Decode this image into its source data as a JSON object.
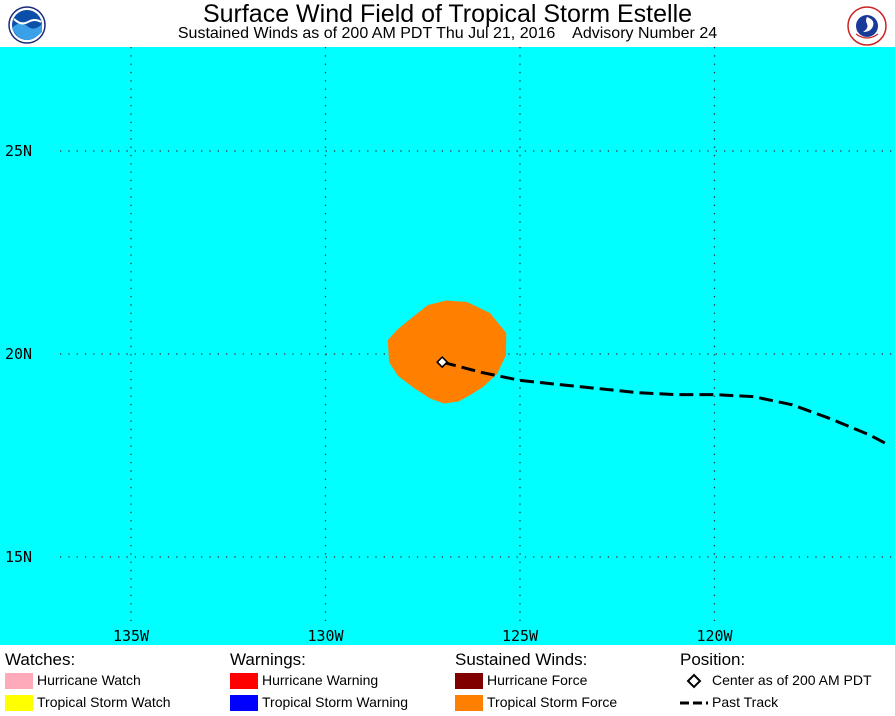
{
  "title": "Surface Wind Field of Tropical Storm Estelle",
  "subtitle": "Sustained Winds as of 200 AM PDT Thu Jul 21, 2016    Advisory Number 24",
  "logos": {
    "left": "noaa-logo",
    "right": "national-weather-service-logo"
  },
  "colors": {
    "ocean": "#00ffff",
    "grid": "#333333",
    "tropical_storm_force": "#ff8000",
    "hurricane_force": "#800000",
    "hurricane_watch": "#ffaabb",
    "tropical_storm_watch": "#ffff00",
    "hurricane_warning": "#ff0000",
    "tropical_storm_warning": "#0000ff",
    "track": "#000000"
  },
  "map": {
    "lat_labels": [
      "25N",
      "20N",
      "15N"
    ],
    "lon_labels": [
      "135W",
      "130W",
      "125W",
      "120W"
    ]
  },
  "storm": {
    "center_lat": 19.8,
    "center_lon": -127.0,
    "past_track": [
      [
        -127.0,
        19.8
      ],
      [
        -126.0,
        19.55
      ],
      [
        -125.0,
        19.35
      ],
      [
        -124.0,
        19.25
      ],
      [
        -123.0,
        19.15
      ],
      [
        -122.0,
        19.05
      ],
      [
        -121.0,
        19.0
      ],
      [
        -120.0,
        19.0
      ],
      [
        -119.0,
        18.95
      ],
      [
        -118.0,
        18.75
      ],
      [
        -117.0,
        18.4
      ],
      [
        -116.0,
        18.0
      ],
      [
        -115.5,
        17.75
      ]
    ]
  },
  "legend": {
    "watches": {
      "heading": "Watches:",
      "items": [
        {
          "label": "Hurricane Watch",
          "color": "#ffaabb"
        },
        {
          "label": "Tropical Storm Watch",
          "color": "#ffff00"
        }
      ]
    },
    "warnings": {
      "heading": "Warnings:",
      "items": [
        {
          "label": "Hurricane Warning",
          "color": "#ff0000"
        },
        {
          "label": "Tropical Storm Warning",
          "color": "#0000ff"
        }
      ]
    },
    "winds": {
      "heading": "Sustained Winds:",
      "items": [
        {
          "label": "Hurricane Force",
          "color": "#800000"
        },
        {
          "label": "Tropical Storm Force",
          "color": "#ff8000"
        }
      ]
    },
    "position": {
      "heading": "Position:",
      "items": [
        {
          "label": "Center as of 200 AM PDT",
          "symbol": "diamond"
        },
        {
          "label": "Past Track",
          "symbol": "dashed-line"
        }
      ]
    }
  }
}
